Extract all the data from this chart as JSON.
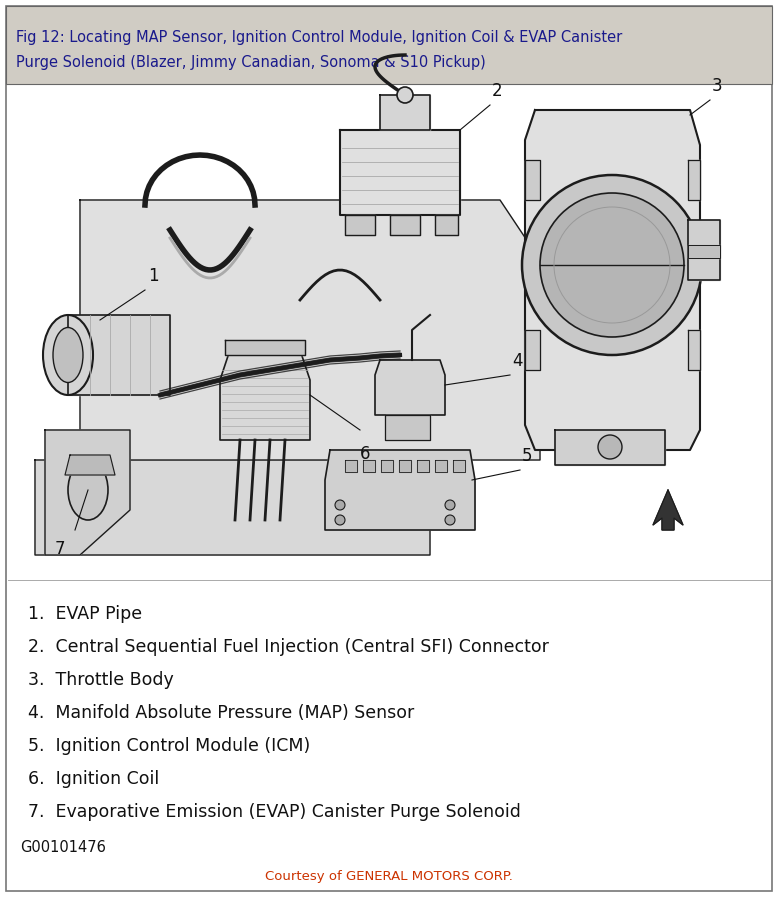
{
  "title_line1": "Fig 12: Locating MAP Sensor, Ignition Control Module, Ignition Coil & EVAP Canister",
  "title_line2": "Purge Solenoid (Blazer, Jimmy Canadian, Sonoma & S10 Pickup)",
  "title_bg": "#d0ccc4",
  "title_color": "#1a1a8c",
  "title_fontsize": 10.5,
  "border_color": "#666666",
  "bg_color": "#ffffff",
  "legend_items": [
    "1.  EVAP Pipe",
    "2.  Central Sequential Fuel Injection (Central SFI) Connector",
    "3.  Throttle Body",
    "4.  Manifold Absolute Pressure (MAP) Sensor",
    "5.  Ignition Control Module (ICM)",
    "6.  Ignition Coil",
    "7.  Evaporative Emission (EVAP) Canister Purge Solenoid"
  ],
  "legend_fontsize": 12.5,
  "legend_color": "#111111",
  "figure_id": "G00101476",
  "figure_id_fontsize": 10.5,
  "courtesy_text": "Courtesy of GENERAL MOTORS CORP.",
  "courtesy_color": "#cc3300",
  "courtesy_fontsize": 9.5,
  "outer_border_color": "#777777",
  "outer_border_lw": 1.2,
  "title_bar_height": 0.088
}
